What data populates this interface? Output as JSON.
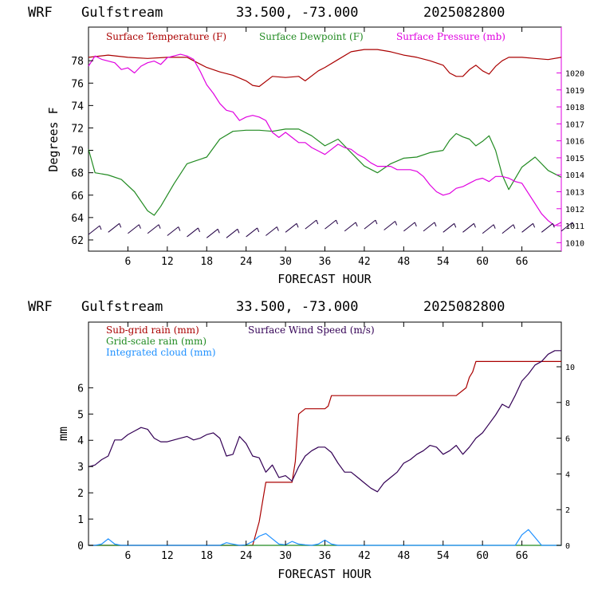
{
  "chart_data": [
    {
      "type": "line",
      "header": {
        "model": "WRF",
        "domain": "Gulfstream",
        "coords": "33.500, -73.000",
        "date": "2025082800"
      },
      "xlabel": "FORECAST HOUR",
      "ylabel": "Degrees F",
      "xlim": [
        0,
        72
      ],
      "xticks": [
        "6",
        "12",
        "18",
        "24",
        "30",
        "36",
        "42",
        "48",
        "54",
        "60",
        "66"
      ],
      "ylim": [
        61,
        81
      ],
      "yticks": [
        "62",
        "64",
        "66",
        "68",
        "70",
        "72",
        "74",
        "76",
        "78"
      ],
      "y2lim": [
        1009.5,
        1022.7
      ],
      "y2ticks": [
        "1010",
        "1011",
        "1012",
        "1013",
        "1014",
        "1015",
        "1016",
        "1017",
        "1018",
        "1019",
        "1020"
      ],
      "series": [
        {
          "name": "Surface Temperature (F)",
          "color": "#aa0000",
          "axis": "left",
          "x": [
            0,
            3,
            6,
            9,
            12,
            15,
            16,
            18,
            20,
            22,
            24,
            25,
            26,
            28,
            30,
            32,
            33,
            35,
            36,
            38,
            40,
            42,
            44,
            46,
            48,
            50,
            52,
            54,
            55,
            56,
            57,
            58,
            59,
            60,
            61,
            62,
            63,
            64,
            66,
            68,
            70,
            72
          ],
          "y": [
            78.3,
            78.5,
            78.3,
            78.2,
            78.3,
            78.3,
            78.0,
            77.4,
            77.0,
            76.7,
            76.2,
            75.8,
            75.7,
            76.6,
            76.5,
            76.6,
            76.2,
            77.1,
            77.4,
            78.1,
            78.8,
            79.0,
            79.0,
            78.8,
            78.5,
            78.3,
            78.0,
            77.6,
            76.9,
            76.6,
            76.6,
            77.2,
            77.6,
            77.1,
            76.8,
            77.5,
            78.0,
            78.3,
            78.3,
            78.2,
            78.1,
            78.3
          ]
        },
        {
          "name": "Surface Dewpoint (F)",
          "color": "#228b22",
          "axis": "left",
          "x": [
            0,
            1,
            3,
            5,
            7,
            9,
            10,
            11,
            13,
            15,
            16,
            18,
            20,
            22,
            24,
            26,
            28,
            30,
            32,
            34,
            36,
            38,
            40,
            42,
            44,
            46,
            48,
            50,
            52,
            54,
            55,
            56,
            57,
            58,
            59,
            60,
            61,
            62,
            63,
            64,
            66,
            68,
            70,
            72
          ],
          "y": [
            70.1,
            68.0,
            67.8,
            67.4,
            66.3,
            64.6,
            64.2,
            65.0,
            67.0,
            68.8,
            69.0,
            69.4,
            71.0,
            71.7,
            71.8,
            71.8,
            71.7,
            71.9,
            71.9,
            71.3,
            70.4,
            71.0,
            69.8,
            68.6,
            68.0,
            68.8,
            69.3,
            69.4,
            69.8,
            70.0,
            70.9,
            71.5,
            71.2,
            71.0,
            70.4,
            70.8,
            71.3,
            70.0,
            67.8,
            66.5,
            68.5,
            69.4,
            68.2,
            67.6
          ]
        },
        {
          "name": "Surface Pressure (mb)",
          "color": "#e000e0",
          "axis": "right",
          "x": [
            0,
            1,
            2,
            3,
            4,
            5,
            6,
            7,
            8,
            9,
            10,
            11,
            12,
            13,
            14,
            15,
            16,
            17,
            18,
            19,
            20,
            21,
            22,
            23,
            24,
            25,
            26,
            27,
            28,
            29,
            30,
            31,
            32,
            33,
            34,
            35,
            36,
            37,
            38,
            39,
            40,
            41,
            42,
            43,
            44,
            45,
            46,
            47,
            48,
            49,
            50,
            51,
            52,
            53,
            54,
            55,
            56,
            57,
            58,
            59,
            60,
            61,
            62,
            63,
            64,
            65,
            66,
            67,
            68,
            69,
            70,
            71,
            72
          ],
          "y": [
            1020.4,
            1021.0,
            1020.8,
            1020.7,
            1020.6,
            1020.2,
            1020.3,
            1020.0,
            1020.4,
            1020.6,
            1020.7,
            1020.5,
            1020.9,
            1021.0,
            1021.1,
            1021.0,
            1020.8,
            1020.1,
            1019.3,
            1018.8,
            1018.2,
            1017.8,
            1017.7,
            1017.2,
            1017.4,
            1017.5,
            1017.4,
            1017.2,
            1016.5,
            1016.2,
            1016.5,
            1016.2,
            1015.9,
            1015.9,
            1015.6,
            1015.4,
            1015.2,
            1015.5,
            1015.8,
            1015.6,
            1015.5,
            1015.2,
            1015.0,
            1014.7,
            1014.5,
            1014.5,
            1014.5,
            1014.3,
            1014.3,
            1014.3,
            1014.2,
            1013.9,
            1013.4,
            1013.0,
            1012.8,
            1012.9,
            1013.2,
            1013.3,
            1013.5,
            1013.7,
            1013.8,
            1013.6,
            1013.9,
            1013.9,
            1013.8,
            1013.6,
            1013.5,
            1012.9,
            1012.3,
            1011.7,
            1011.3,
            1011.0,
            1011.2
          ]
        },
        {
          "name": "",
          "color": "#220044",
          "axis": "left",
          "x": [
            0,
            3,
            6,
            9,
            12,
            15,
            18,
            21,
            24,
            27,
            30,
            33,
            36,
            39,
            42,
            45,
            48,
            51,
            54,
            57,
            60,
            63,
            66,
            69,
            72
          ],
          "y": [
            62.7,
            62.9,
            62.8,
            62.8,
            62.6,
            62.5,
            62.4,
            62.4,
            62.5,
            62.6,
            62.9,
            63.2,
            63.2,
            63.0,
            63.2,
            63.1,
            63.0,
            63.0,
            62.9,
            62.9,
            62.8,
            62.8,
            62.9,
            62.9,
            63.0
          ]
        }
      ]
    },
    {
      "type": "line",
      "header": {
        "model": "WRF",
        "domain": "Gulfstream",
        "coords": "33.500, -73.000",
        "date": "2025082800"
      },
      "xlabel": "FORECAST HOUR",
      "ylabel": "mm",
      "xlim": [
        0,
        72
      ],
      "xticks": [
        "6",
        "12",
        "18",
        "24",
        "30",
        "36",
        "42",
        "48",
        "54",
        "60",
        "66"
      ],
      "ylim": [
        0,
        8.5
      ],
      "yticks": [
        "0",
        "1",
        "2",
        "3",
        "4",
        "5",
        "6"
      ],
      "y2lim": [
        0,
        12.5
      ],
      "y2ticks": [
        "0",
        "2",
        "4",
        "6",
        "8",
        "10"
      ],
      "series": [
        {
          "name": "Sub-grid rain (mm)",
          "color": "#aa0000",
          "axis": "left",
          "x": [
            0,
            25,
            26,
            27,
            29,
            31,
            31.5,
            32,
            33,
            36,
            36.5,
            37,
            56,
            57,
            57.5,
            58,
            58.5,
            59,
            72
          ],
          "y": [
            0,
            0,
            0.9,
            2.4,
            2.4,
            2.4,
            3.2,
            5.0,
            5.2,
            5.2,
            5.3,
            5.7,
            5.7,
            5.9,
            6.0,
            6.4,
            6.6,
            7.0,
            7.0
          ]
        },
        {
          "name": "Grid-scale rain (mm)",
          "color": "#228b22",
          "axis": "left",
          "x": [
            0,
            72
          ],
          "y": [
            0,
            0
          ]
        },
        {
          "name": "Integrated cloud (mm)",
          "color": "#1e90ff",
          "axis": "left",
          "x": [
            0,
            1,
            2,
            3,
            4,
            5,
            6,
            20,
            21,
            22,
            23,
            24,
            25,
            26,
            27,
            28,
            29,
            30,
            31,
            32,
            33,
            34,
            35,
            36,
            37,
            38,
            39,
            40,
            65,
            66,
            67,
            68,
            69,
            70,
            72
          ],
          "y": [
            0,
            0,
            0.05,
            0.25,
            0.05,
            0,
            0,
            0,
            0.1,
            0.05,
            0,
            0.02,
            0.15,
            0.35,
            0.45,
            0.25,
            0.05,
            0.02,
            0.15,
            0.05,
            0.02,
            0,
            0.05,
            0.2,
            0.05,
            0,
            0,
            0,
            0,
            0.4,
            0.6,
            0.3,
            0,
            0,
            0
          ]
        },
        {
          "name": "Surface Wind Speed (m/s)",
          "color": "#330055",
          "axis": "right",
          "x": [
            0,
            1,
            2,
            3,
            4,
            5,
            6,
            7,
            8,
            9,
            10,
            11,
            12,
            13,
            14,
            15,
            16,
            17,
            18,
            19,
            20,
            21,
            22,
            23,
            24,
            25,
            26,
            27,
            28,
            29,
            30,
            31,
            32,
            33,
            34,
            35,
            36,
            37,
            38,
            39,
            40,
            41,
            42,
            43,
            44,
            45,
            46,
            47,
            48,
            49,
            50,
            51,
            52,
            53,
            54,
            55,
            56,
            57,
            58,
            59,
            60,
            61,
            62,
            63,
            64,
            65,
            66,
            67,
            68,
            69,
            70,
            71,
            72
          ],
          "y": [
            4.4,
            4.5,
            4.8,
            5.0,
            5.9,
            5.9,
            6.2,
            6.4,
            6.6,
            6.5,
            6.0,
            5.8,
            5.8,
            5.9,
            6.0,
            6.1,
            5.9,
            6.0,
            6.2,
            6.3,
            6.0,
            5.0,
            5.1,
            6.1,
            5.7,
            5.0,
            4.9,
            4.1,
            4.5,
            3.8,
            3.9,
            3.6,
            4.4,
            5.0,
            5.3,
            5.5,
            5.5,
            5.2,
            4.6,
            4.1,
            4.1,
            3.8,
            3.5,
            3.2,
            3.0,
            3.5,
            3.8,
            4.1,
            4.6,
            4.8,
            5.1,
            5.3,
            5.6,
            5.5,
            5.1,
            5.3,
            5.6,
            5.1,
            5.5,
            6.0,
            6.3,
            6.8,
            7.3,
            7.9,
            7.7,
            8.4,
            9.2,
            9.6,
            10.1,
            10.3,
            10.7,
            10.9,
            10.9
          ]
        }
      ]
    }
  ]
}
